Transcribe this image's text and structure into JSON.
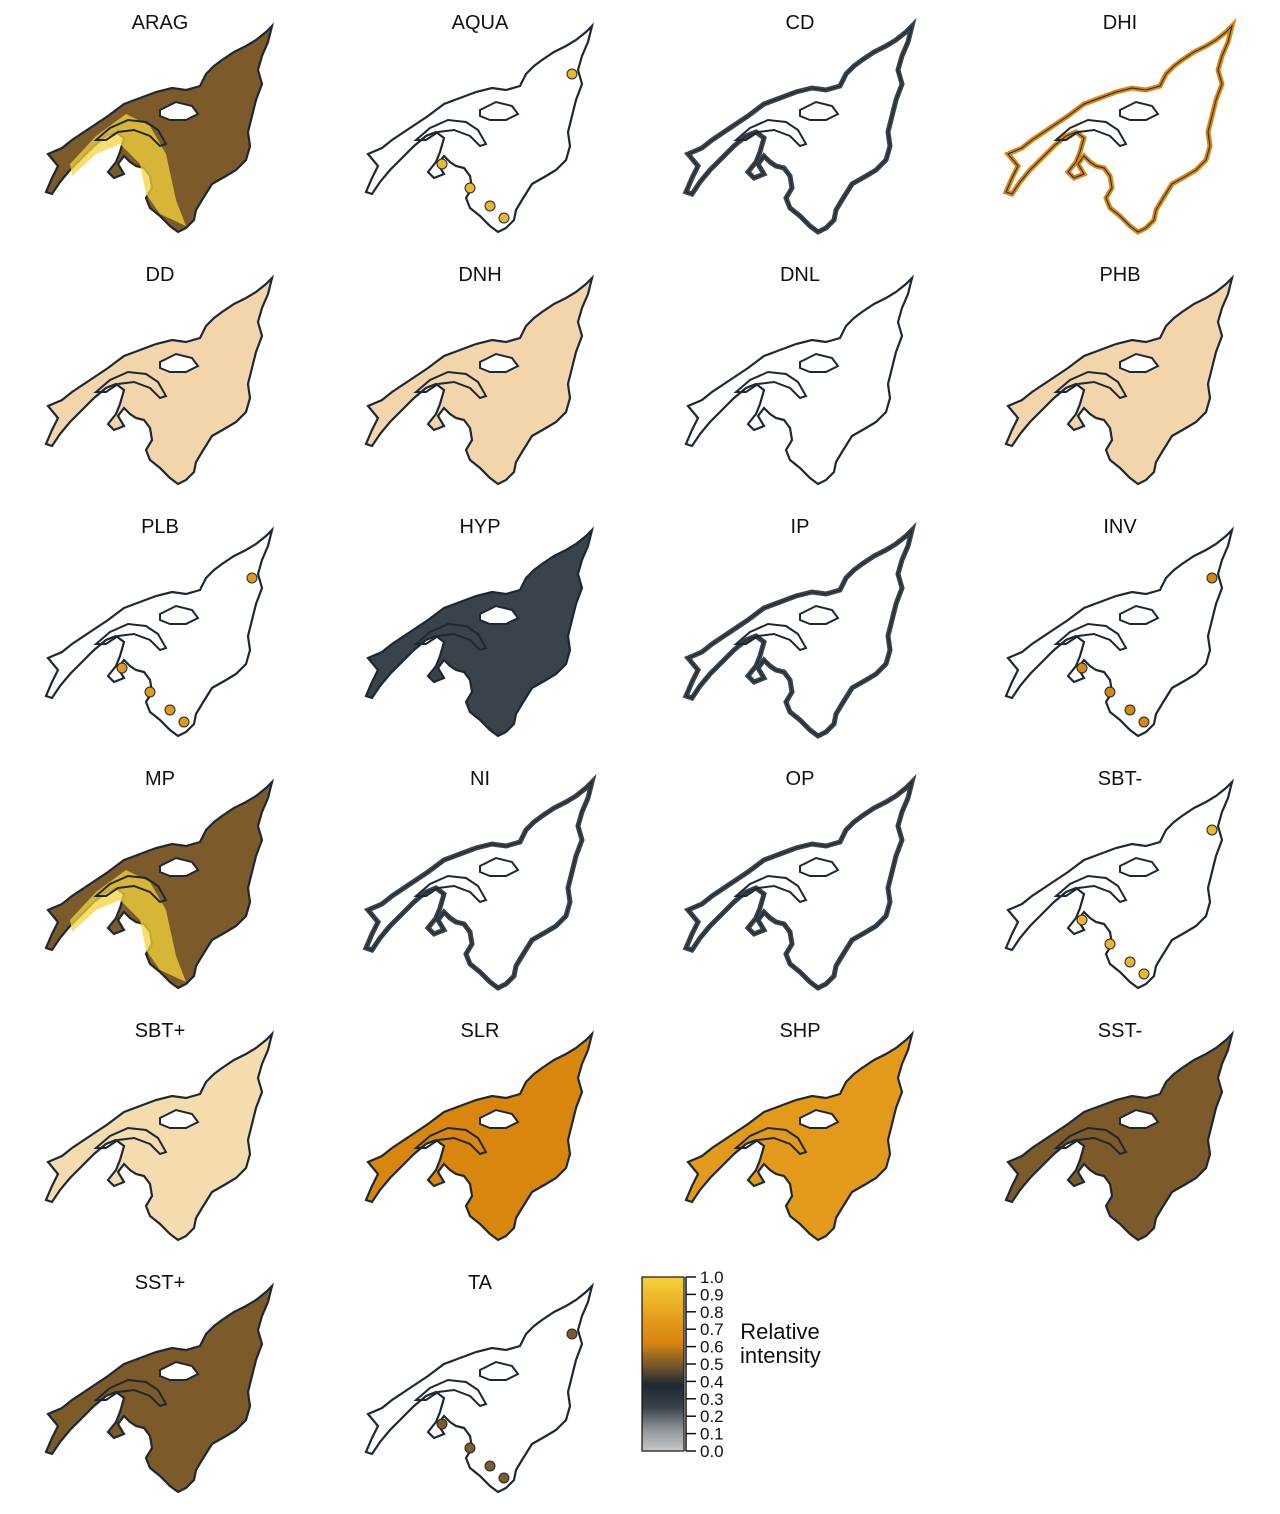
{
  "chart_data": {
    "type": "heatmap",
    "title": "",
    "colors": {
      "scale": [
        "#c8cacc",
        "#8e9498",
        "#3a434a",
        "#1f2732",
        "#7c5a2a",
        "#d9860e",
        "#e39a1b",
        "#edb62a",
        "#f3d23a"
      ],
      "outline": "#1c2833",
      "low": "#c8cacc",
      "mid": "#1f2732",
      "high": "#f5d43c"
    },
    "panels": [
      {
        "label": "ARAG",
        "fill": "mixed",
        "mean_intensity": 0.55
      },
      {
        "label": "AQUA",
        "fill": "sparse",
        "mean_intensity": 0.9
      },
      {
        "label": "CD",
        "fill": "edge",
        "mean_intensity": 0.2
      },
      {
        "label": "DHI",
        "fill": "edge",
        "mean_intensity": 0.65
      },
      {
        "label": "DD",
        "fill": "patchy",
        "mean_intensity": 0.65
      },
      {
        "label": "DNH",
        "fill": "patchy",
        "mean_intensity": 0.65
      },
      {
        "label": "DNL",
        "fill": "none",
        "mean_intensity": 0.0
      },
      {
        "label": "PHB",
        "fill": "patchy",
        "mean_intensity": 0.62
      },
      {
        "label": "PLB",
        "fill": "sparse",
        "mean_intensity": 0.7
      },
      {
        "label": "HYP",
        "fill": "full",
        "mean_intensity": 0.3
      },
      {
        "label": "IP",
        "fill": "edge",
        "mean_intensity": 0.25
      },
      {
        "label": "INV",
        "fill": "spots",
        "mean_intensity": 0.65
      },
      {
        "label": "MP",
        "fill": "mixed",
        "mean_intensity": 0.45
      },
      {
        "label": "NI",
        "fill": "edge",
        "mean_intensity": 0.2
      },
      {
        "label": "OP",
        "fill": "edge",
        "mean_intensity": 0.2
      },
      {
        "label": "SBT-",
        "fill": "sparse",
        "mean_intensity": 0.85
      },
      {
        "label": "SBT+",
        "fill": "patchy",
        "mean_intensity": 0.75
      },
      {
        "label": "SLR",
        "fill": "full",
        "mean_intensity": 0.65
      },
      {
        "label": "SHP",
        "fill": "full",
        "mean_intensity": 0.7
      },
      {
        "label": "SST-",
        "fill": "full",
        "mean_intensity": 0.55
      },
      {
        "label": "SST+",
        "fill": "full",
        "mean_intensity": 0.5
      },
      {
        "label": "TA",
        "fill": "spots",
        "mean_intensity": 0.45
      }
    ],
    "legend": {
      "title_lines": [
        "Relative",
        "intensity"
      ],
      "ticks": [
        "0.0",
        "0.1",
        "0.2",
        "0.3",
        "0.4",
        "0.5",
        "0.6",
        "0.7",
        "0.8",
        "0.9",
        "1.0"
      ],
      "range": [
        0,
        1
      ]
    }
  }
}
